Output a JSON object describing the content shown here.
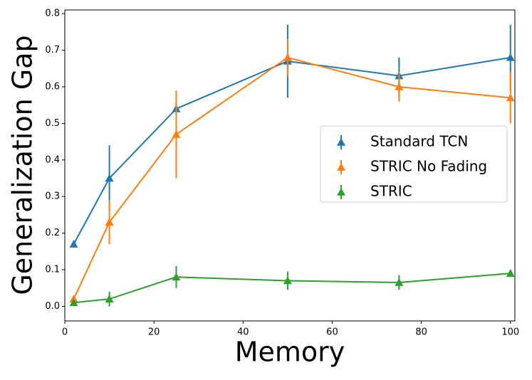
{
  "chart_data": {
    "type": "line",
    "xlabel": "Memory",
    "ylabel": "Generalization Gap",
    "x": [
      2,
      10,
      25,
      50,
      75,
      100
    ],
    "series": [
      {
        "name": "Standard TCN",
        "color": "#1f77b4",
        "values": [
          0.17,
          0.35,
          0.54,
          0.67,
          0.63,
          0.68
        ],
        "errors": [
          0.01,
          0.09,
          0.02,
          0.1,
          0.05,
          0.09
        ]
      },
      {
        "name": "STRIC No Fading",
        "color": "#ff7f0e",
        "values": [
          0.02,
          0.23,
          0.47,
          0.68,
          0.6,
          0.57
        ],
        "errors": [
          0.01,
          0.06,
          0.12,
          0.05,
          0.04,
          0.07
        ]
      },
      {
        "name": "STRIC",
        "color": "#2ca02c",
        "values": [
          0.01,
          0.02,
          0.08,
          0.07,
          0.065,
          0.09
        ],
        "errors": [
          0.005,
          0.02,
          0.03,
          0.025,
          0.02,
          0.01
        ]
      }
    ],
    "xlim": [
      0,
      101
    ],
    "ylim": [
      -0.04,
      0.81
    ],
    "xticks": [
      0,
      20,
      40,
      60,
      80,
      100
    ],
    "yticks": [
      {
        "value": 0,
        "label": "0.0"
      },
      0.1,
      0.2,
      0.3,
      0.4,
      0.5,
      0.6,
      0.7,
      0.8
    ],
    "legend": "right"
  }
}
